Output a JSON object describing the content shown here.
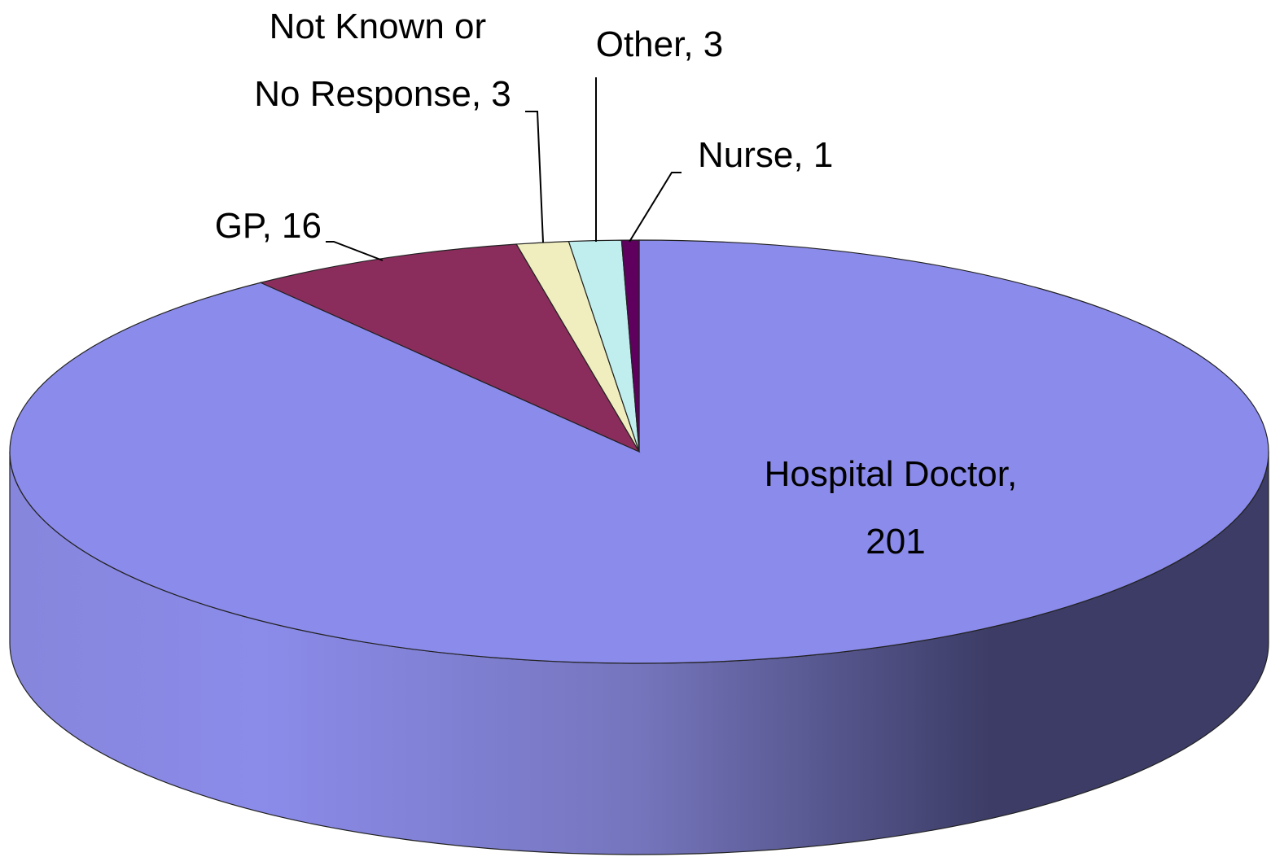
{
  "chart_data": {
    "type": "pie3d",
    "labels": [
      "Hospital Doctor, 201",
      "GP, 16",
      "Not Known or No Response, 3",
      "Other, 3",
      "Nurse, 1"
    ],
    "values": [
      201,
      16,
      3,
      3,
      1
    ],
    "colors": [
      "#8b8beb",
      "#8b2d5c",
      "#f0eebf",
      "#c0eeee",
      "#5f005f"
    ]
  }
}
